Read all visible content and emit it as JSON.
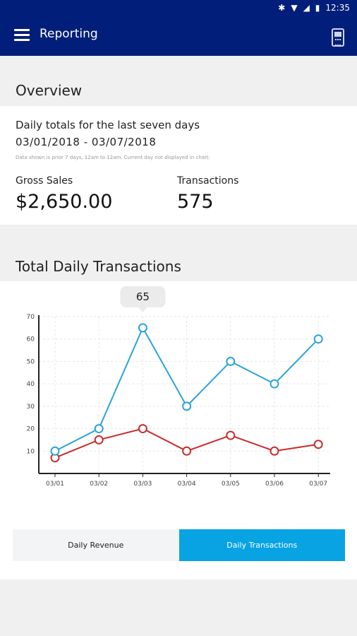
{
  "status_bar": {
    "time": "12:35",
    "icons": [
      "bluetooth-icon",
      "wifi-icon",
      "signal-icon",
      "battery-icon"
    ]
  },
  "app_bar": {
    "title": "Reporting",
    "menu_icon": "hamburger-menu-icon",
    "action_icon": "card-reader-device-icon"
  },
  "overview": {
    "heading": "Overview",
    "subtitle": "Daily totals for the last seven days",
    "date_range": "03/01/2018 - 03/07/2018",
    "note": "Data shown is prior 7 days, 12am to 12am. Current day not displayed in chart.",
    "gross_sales_label": "Gross Sales",
    "gross_sales_value": "$2,650.00",
    "transactions_label": "Transactions",
    "transactions_value": "575"
  },
  "chart_section": {
    "heading": "Total Daily Transactions"
  },
  "chart_data": {
    "type": "line",
    "title": "Total Daily Transactions",
    "categories": [
      "03/01",
      "03/02",
      "03/03",
      "03/04",
      "03/05",
      "03/06",
      "03/07"
    ],
    "series": [
      {
        "values": [
          10,
          20,
          65,
          30,
          50,
          40,
          60
        ],
        "color": "#2aa3dc"
      },
      {
        "values": [
          7,
          15,
          20,
          10,
          17,
          10,
          13
        ],
        "color": "#cc2a2a"
      }
    ],
    "ylim": [
      0,
      70
    ],
    "yticks": [
      10,
      20,
      30,
      40,
      50,
      60,
      70
    ],
    "grid": true,
    "tooltip": {
      "category": "03/03",
      "value": "65"
    }
  },
  "toggle": {
    "options": [
      "Daily Revenue",
      "Daily Transactions"
    ],
    "selected": "Daily Transactions",
    "accent": "#08a3e3"
  }
}
